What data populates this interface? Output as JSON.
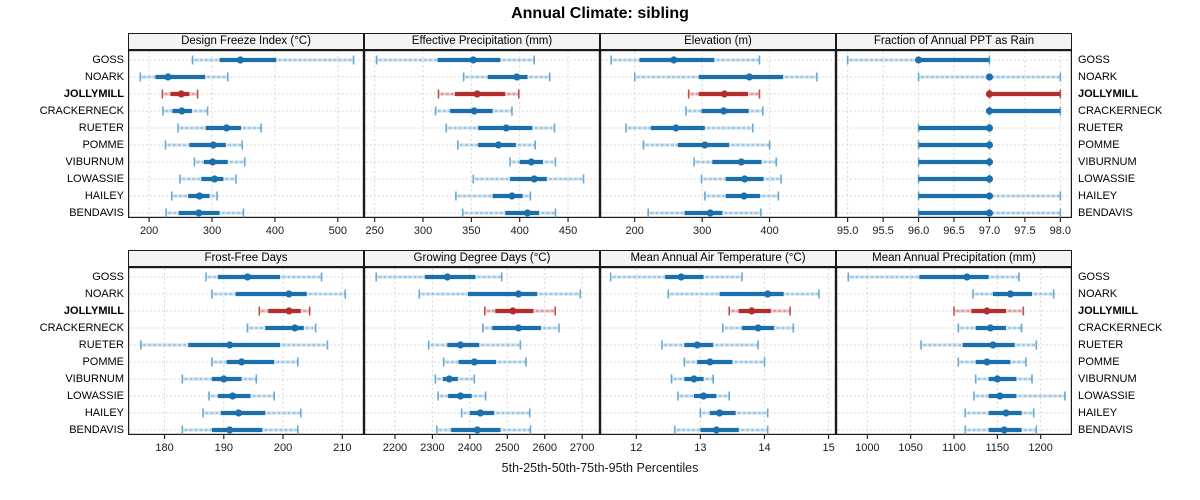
{
  "title": "Annual Climate: sibling",
  "xlabel": "5th-25th-50th-75th-95th Percentiles",
  "sites": [
    "GOSS",
    "NOARK",
    "JOLLYMILL",
    "CRACKERNECK",
    "RUETER",
    "POMME",
    "VIBURNUM",
    "LOWASSIE",
    "HAILEY",
    "BENDAVIS"
  ],
  "highlight_site": "JOLLYMILL",
  "percentile_levels": [
    5,
    25,
    50,
    75,
    95
  ],
  "panel_layout": {
    "rows": 2,
    "cols": 4
  },
  "style_colors": {
    "blue_dark": "#1c6fad",
    "blue_pale": "#9ec6e0",
    "blue_pale_dash": "#cfe3f1",
    "blue_cap": "#6aa8d0",
    "red_dark": "#b52c2c",
    "red_pale": "#d89c9c",
    "red_pale_dash": "#ecc9c9",
    "red_cap": "#c05050",
    "grid_vertical": "#d6d6d6",
    "grid_horizontal": "#d2d2d2",
    "panel_border": "#1a1a1a",
    "header_bg": "#f4f4f4"
  },
  "chart_data": [
    {
      "type": "dot-whisker",
      "variable": "Design Freeze Index (°C)",
      "xlim": [
        168,
        540
      ],
      "ticks": [
        200,
        300,
        400,
        500
      ],
      "tick_labels": [
        "200",
        "300",
        "400",
        "500"
      ],
      "values": [
        [
          269,
          312,
          345,
          402,
          525
        ],
        [
          186,
          210,
          230,
          289,
          325
        ],
        [
          221,
          234,
          251,
          264,
          277
        ],
        [
          222,
          237,
          252,
          268,
          293
        ],
        [
          246,
          290,
          323,
          346,
          378
        ],
        [
          226,
          264,
          302,
          322,
          348
        ],
        [
          272,
          287,
          301,
          325,
          352
        ],
        [
          249,
          283,
          304,
          318,
          338
        ],
        [
          236,
          262,
          280,
          296,
          308
        ],
        [
          227,
          247,
          279,
          312,
          350
        ]
      ]
    },
    {
      "type": "dot-whisker",
      "variable": "Effective Precipitation (mm)",
      "xlim": [
        240,
        482
      ],
      "ticks": [
        250,
        300,
        350,
        400,
        450
      ],
      "tick_labels": [
        "250",
        "300",
        "350",
        "400",
        "450"
      ],
      "values": [
        [
          252,
          315,
          352,
          380,
          415
        ],
        [
          342,
          367,
          397,
          408,
          431
        ],
        [
          316,
          333,
          356,
          385,
          399
        ],
        [
          313,
          328,
          353,
          372,
          392
        ],
        [
          324,
          357,
          386,
          413,
          436
        ],
        [
          336,
          357,
          378,
          396,
          416
        ],
        [
          390,
          400,
          412,
          424,
          437
        ],
        [
          352,
          390,
          415,
          428,
          466
        ],
        [
          334,
          372,
          392,
          403,
          411
        ],
        [
          341,
          385,
          408,
          420,
          437
        ]
      ]
    },
    {
      "type": "dot-whisker",
      "variable": "Elevation (m)",
      "xlim": [
        150,
        497
      ],
      "ticks": [
        200,
        300,
        400
      ],
      "tick_labels": [
        "200",
        "300",
        "400"
      ],
      "values": [
        [
          165,
          207,
          258,
          318,
          385
        ],
        [
          200,
          295,
          370,
          420,
          470
        ],
        [
          280,
          295,
          333,
          368,
          385
        ],
        [
          276,
          299,
          332,
          369,
          390
        ],
        [
          187,
          224,
          261,
          304,
          375
        ],
        [
          213,
          264,
          304,
          340,
          400
        ],
        [
          288,
          315,
          358,
          388,
          410
        ],
        [
          299,
          335,
          363,
          391,
          417
        ],
        [
          304,
          335,
          362,
          386,
          413
        ],
        [
          220,
          274,
          312,
          330,
          387
        ]
      ]
    },
    {
      "type": "dot-whisker",
      "variable": "Fraction of Annual PPT as Rain",
      "xlim": [
        94.85,
        98.15
      ],
      "ticks": [
        95.0,
        95.5,
        96.0,
        96.5,
        97.0,
        97.5,
        98.0
      ],
      "tick_labels": [
        "95.0",
        "95.5",
        "96.0",
        "96.5",
        "97.0",
        "97.5",
        "98.0"
      ],
      "values": [
        [
          95,
          96,
          96,
          97,
          97
        ],
        [
          96,
          97,
          97,
          97,
          98
        ],
        [
          97,
          97,
          97,
          98,
          98
        ],
        [
          97,
          97,
          97,
          98,
          98
        ],
        [
          96,
          96,
          97,
          97,
          97
        ],
        [
          96,
          96,
          97,
          97,
          97
        ],
        [
          96,
          96,
          97,
          97,
          97
        ],
        [
          96,
          96,
          97,
          97,
          97
        ],
        [
          96,
          96,
          97,
          97,
          98
        ],
        [
          96,
          96,
          97,
          97,
          98
        ]
      ]
    },
    {
      "type": "dot-whisker",
      "variable": "Frost-Free Days",
      "xlim": [
        174,
        213.5
      ],
      "ticks": [
        180,
        190,
        200,
        210
      ],
      "tick_labels": [
        "180",
        "190",
        "200",
        "210"
      ],
      "values": [
        [
          187,
          189,
          194,
          199.5,
          206.5
        ],
        [
          188,
          192,
          201,
          204,
          210.5
        ],
        [
          196,
          197.5,
          201,
          203,
          204.5
        ],
        [
          194,
          197,
          202,
          203.5,
          205.5
        ],
        [
          176,
          184,
          191,
          199.5,
          207.5
        ],
        [
          188,
          190.5,
          193,
          198.5,
          202.5
        ],
        [
          183,
          188,
          190,
          193,
          195.5
        ],
        [
          187.5,
          189,
          191.5,
          194.5,
          198.5
        ],
        [
          186.5,
          189.5,
          192.5,
          197,
          203
        ],
        [
          183,
          188,
          191,
          196.5,
          202.5
        ]
      ]
    },
    {
      "type": "dot-whisker",
      "variable": "Growing Degree Days (°C)",
      "xlim": [
        2120,
        2745
      ],
      "ticks": [
        2200,
        2300,
        2400,
        2500,
        2600,
        2700
      ],
      "tick_labels": [
        "2200",
        "2300",
        "2400",
        "2500",
        "2600",
        "2700"
      ],
      "values": [
        [
          2150,
          2280,
          2340,
          2415,
          2485
        ],
        [
          2265,
          2395,
          2530,
          2580,
          2695
        ],
        [
          2440,
          2468,
          2515,
          2570,
          2628
        ],
        [
          2435,
          2460,
          2530,
          2590,
          2638
        ],
        [
          2290,
          2340,
          2375,
          2425,
          2535
        ],
        [
          2330,
          2370,
          2412,
          2470,
          2550
        ],
        [
          2308,
          2328,
          2345,
          2368,
          2412
        ],
        [
          2315,
          2342,
          2375,
          2405,
          2442
        ],
        [
          2378,
          2400,
          2428,
          2465,
          2560
        ],
        [
          2312,
          2350,
          2420,
          2482,
          2562
        ]
      ]
    },
    {
      "type": "dot-whisker",
      "variable": "Mean Annual Air Temperature (°C)",
      "xlim": [
        11.45,
        15.1
      ],
      "ticks": [
        12,
        13,
        14,
        15
      ],
      "tick_labels": [
        "12",
        "13",
        "14",
        "15"
      ],
      "values": [
        [
          11.6,
          12.45,
          12.7,
          13.05,
          13.65
        ],
        [
          12.5,
          13.3,
          14.05,
          14.3,
          14.85
        ],
        [
          13.45,
          13.6,
          13.8,
          14.1,
          14.4
        ],
        [
          13.35,
          13.65,
          13.9,
          14.15,
          14.45
        ],
        [
          12.4,
          12.75,
          12.95,
          13.2,
          13.9
        ],
        [
          12.75,
          12.95,
          13.15,
          13.5,
          14.0
        ],
        [
          12.55,
          12.75,
          12.9,
          13.05,
          13.2
        ],
        [
          12.65,
          12.9,
          13.05,
          13.25,
          13.45
        ],
        [
          13.0,
          13.15,
          13.3,
          13.55,
          14.05
        ],
        [
          12.6,
          13.0,
          13.25,
          13.6,
          14.05
        ]
      ]
    },
    {
      "type": "dot-whisker",
      "variable": "Mean Annual Precipitation (mm)",
      "xlim": [
        965,
        1235
      ],
      "ticks": [
        1000,
        1050,
        1100,
        1150,
        1200
      ],
      "tick_labels": [
        "1000",
        "1050",
        "1100",
        "1150",
        "1200"
      ],
      "values": [
        [
          978,
          1060,
          1115,
          1140,
          1175
        ],
        [
          1122,
          1145,
          1165,
          1190,
          1215
        ],
        [
          1100,
          1120,
          1138,
          1160,
          1180
        ],
        [
          1105,
          1125,
          1142,
          1160,
          1178
        ],
        [
          1062,
          1110,
          1145,
          1170,
          1195
        ],
        [
          1105,
          1125,
          1138,
          1165,
          1183
        ],
        [
          1125,
          1140,
          1150,
          1172,
          1190
        ],
        [
          1123,
          1140,
          1153,
          1172,
          1228
        ],
        [
          1113,
          1140,
          1160,
          1178,
          1192
        ],
        [
          1113,
          1140,
          1158,
          1178,
          1195
        ]
      ]
    }
  ]
}
